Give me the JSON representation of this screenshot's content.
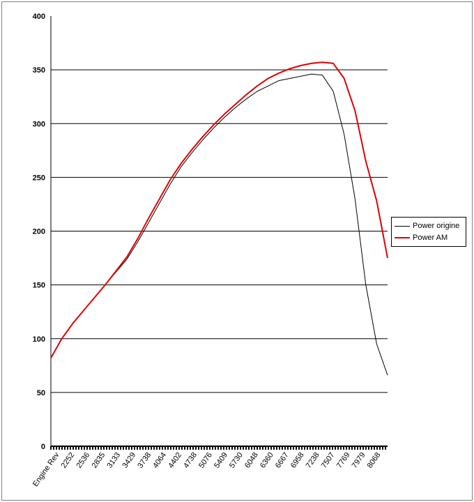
{
  "chart_data": {
    "type": "line",
    "ylim": [
      0,
      400
    ],
    "yticks": [
      0,
      50,
      100,
      150,
      200,
      250,
      300,
      350,
      400
    ],
    "x_tick_labels": [
      "Engine Rev",
      "2252",
      "2536",
      "2835",
      "3133",
      "3429",
      "3738",
      "4064",
      "4402",
      "4738",
      "5076",
      "5409",
      "5730",
      "6048",
      "6360",
      "6667",
      "6958",
      "7238",
      "7507",
      "7769",
      "7979",
      "8068"
    ],
    "grid": "horizontal",
    "legend": "right",
    "series": [
      {
        "name": "Power origine",
        "color": "#000000",
        "values": [
          82,
          100,
          114,
          126,
          138,
          150,
          162,
          174,
          190,
          208,
          226,
          244,
          260,
          273,
          285,
          296,
          306,
          315,
          323,
          330,
          335,
          340,
          342,
          344,
          346,
          345,
          330,
          290,
          230,
          150,
          95,
          66
        ]
      },
      {
        "name": "Power AM",
        "color": "#e00000",
        "values": [
          82,
          100,
          114,
          126,
          138,
          150,
          163,
          176,
          193,
          212,
          230,
          248,
          263,
          276,
          288,
          299,
          309,
          318,
          327,
          335,
          342,
          347,
          351,
          354,
          356,
          357,
          356,
          342,
          312,
          265,
          228,
          175
        ]
      }
    ]
  }
}
